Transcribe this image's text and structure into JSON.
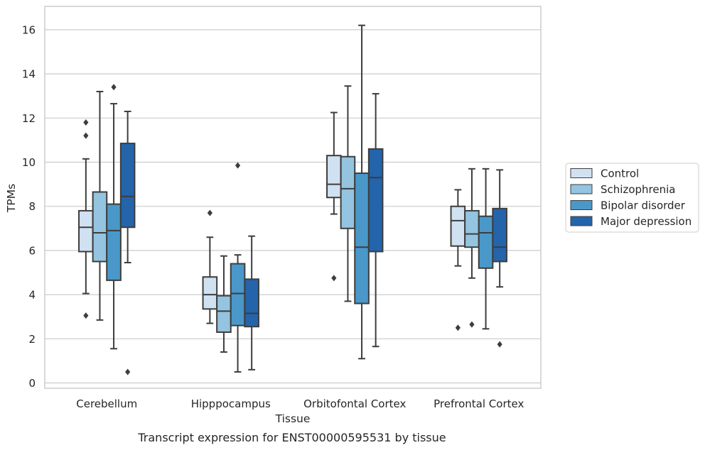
{
  "caption": "Transcript expression for ENST00000595531 by tissue",
  "chart_data": {
    "type": "boxplot",
    "xlabel": "Tissue",
    "ylabel": "TPMs",
    "ylim": [
      -0.3,
      17
    ],
    "yticks": [
      0,
      2,
      4,
      6,
      8,
      10,
      12,
      14,
      16
    ],
    "grid": true,
    "legend_position": "right",
    "categories": [
      "Cerebellum",
      "Hipppocampus",
      "Orbitofontal Cortex",
      "Prefrontal Cortex"
    ],
    "series": [
      {
        "name": "Control",
        "color": "#d0e1f2",
        "boxes": [
          {
            "whislo": 4.05,
            "q1": 5.95,
            "med": 7.05,
            "q3": 7.8,
            "whishi": 10.15,
            "fliers": [
              11.8,
              11.2,
              3.05
            ]
          },
          {
            "whislo": 2.7,
            "q1": 3.35,
            "med": 4.0,
            "q3": 4.8,
            "whishi": 6.6,
            "fliers": [
              7.7
            ]
          },
          {
            "whislo": 7.65,
            "q1": 8.4,
            "med": 9.0,
            "q3": 10.3,
            "whishi": 12.25,
            "fliers": [
              4.75
            ]
          },
          {
            "whislo": 5.3,
            "q1": 6.2,
            "med": 7.35,
            "q3": 8.0,
            "whishi": 8.75,
            "fliers": [
              2.5
            ]
          }
        ]
      },
      {
        "name": "Schizophrenia",
        "color": "#94c4df",
        "boxes": [
          {
            "whislo": 2.85,
            "q1": 5.5,
            "med": 6.8,
            "q3": 8.65,
            "whishi": 13.2,
            "fliers": []
          },
          {
            "whislo": 1.4,
            "q1": 2.3,
            "med": 3.25,
            "q3": 3.95,
            "whishi": 5.75,
            "fliers": []
          },
          {
            "whislo": 3.7,
            "q1": 7.0,
            "med": 8.8,
            "q3": 10.25,
            "whishi": 13.45,
            "fliers": []
          },
          {
            "whislo": 4.75,
            "q1": 6.15,
            "med": 6.75,
            "q3": 7.8,
            "whishi": 9.7,
            "fliers": [
              2.65
            ]
          }
        ]
      },
      {
        "name": "Bipolar disorder",
        "color": "#4a98c9",
        "boxes": [
          {
            "whislo": 1.55,
            "q1": 4.65,
            "med": 6.9,
            "q3": 8.1,
            "whishi": 12.65,
            "fliers": [
              13.4
            ]
          },
          {
            "whislo": 0.5,
            "q1": 2.6,
            "med": 4.05,
            "q3": 5.4,
            "whishi": 5.8,
            "fliers": [
              9.85
            ]
          },
          {
            "whislo": 1.1,
            "q1": 3.6,
            "med": 6.15,
            "q3": 9.5,
            "whishi": 16.2,
            "fliers": []
          },
          {
            "whislo": 2.45,
            "q1": 5.2,
            "med": 6.8,
            "q3": 7.55,
            "whishi": 9.7,
            "fliers": []
          }
        ]
      },
      {
        "name": "Major depression",
        "color": "#2464ab",
        "boxes": [
          {
            "whislo": 5.45,
            "q1": 7.05,
            "med": 8.45,
            "q3": 10.85,
            "whishi": 12.3,
            "fliers": [
              0.5
            ]
          },
          {
            "whislo": 0.6,
            "q1": 2.55,
            "med": 3.15,
            "q3": 4.7,
            "whishi": 6.65,
            "fliers": []
          },
          {
            "whislo": 1.65,
            "q1": 5.95,
            "med": 9.3,
            "q3": 10.6,
            "whishi": 13.1,
            "fliers": []
          },
          {
            "whislo": 4.35,
            "q1": 5.5,
            "med": 6.15,
            "q3": 7.9,
            "whishi": 9.65,
            "fliers": [
              1.75
            ]
          }
        ]
      }
    ]
  }
}
